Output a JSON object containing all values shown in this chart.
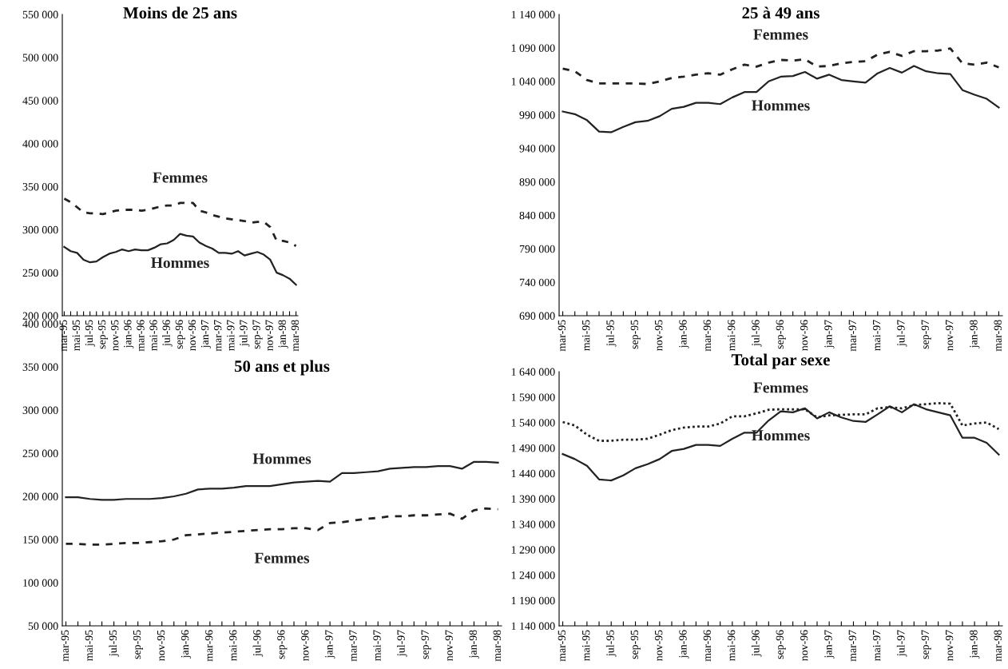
{
  "chart_data": [
    {
      "type": "line",
      "title": "Moins de 25 ans",
      "categories": [
        "mar-95",
        null,
        "mai-95",
        null,
        "jul-95",
        null,
        "sep-95",
        null,
        "nov-95",
        null,
        "jan-96",
        null,
        "mar-96",
        null,
        "mai-96",
        null,
        "jul-96",
        null,
        "sep-96",
        null,
        "nov-96",
        null,
        "jan-97",
        null,
        "mar-97",
        null,
        "mai-97",
        null,
        "jul-97",
        null,
        "sep-97",
        null,
        "nov-97",
        null,
        "jan-98",
        null,
        "mar-98"
      ],
      "ylim": [
        200000,
        550000
      ],
      "yticks": [
        {
          "value": 200000,
          "label": "200 000"
        },
        {
          "value": 250000,
          "label": "250 000"
        },
        {
          "value": 300000,
          "label": "300 000"
        },
        {
          "value": 350000,
          "label": "350 000"
        },
        {
          "value": 400000,
          "label": "400 000"
        },
        {
          "value": 450000,
          "label": "450 000"
        },
        {
          "value": 500000,
          "label": "500 000"
        },
        {
          "value": 550000,
          "label": "550 000"
        }
      ],
      "series": [
        {
          "name": "Femmes",
          "color": "#222222",
          "line_style": "dashed",
          "values": [
            336000,
            332000,
            326000,
            320000,
            319000,
            319000,
            318000,
            320000,
            322000,
            323000,
            323000,
            323000,
            322000,
            323000,
            325000,
            327000,
            328000,
            328000,
            331000,
            331000,
            331000,
            322000,
            320000,
            317000,
            315000,
            313000,
            312000,
            311000,
            310000,
            308000,
            309000,
            309000,
            303000,
            287000,
            287000,
            285000,
            281000
          ]
        },
        {
          "name": "Hommes",
          "color": "#222222",
          "line_style": "solid",
          "values": [
            280000,
            275000,
            273000,
            265000,
            262000,
            263000,
            268000,
            272000,
            274000,
            277000,
            275000,
            277000,
            276000,
            276000,
            279000,
            283000,
            284000,
            288000,
            295000,
            293000,
            292000,
            285000,
            281000,
            278000,
            273000,
            273000,
            272000,
            275000,
            270000,
            272000,
            274000,
            271000,
            265000,
            250000,
            247000,
            243000,
            236000
          ]
        }
      ],
      "grid": false,
      "legend": false,
      "marker": "none"
    },
    {
      "type": "line",
      "title": "25 à 49 ans",
      "categories": [
        "mar-95",
        null,
        "mai-95",
        null,
        "jul-95",
        null,
        "sep-95",
        null,
        "nov-95",
        null,
        "jan-96",
        null,
        "mar-96",
        null,
        "mai-96",
        null,
        "jul-96",
        null,
        "sep-96",
        null,
        "nov-96",
        null,
        "jan-97",
        null,
        "mar-97",
        null,
        "mai-97",
        null,
        "jul-97",
        null,
        "sep-97",
        null,
        "nov-97",
        null,
        "jan-98",
        null,
        "mar-98"
      ],
      "ylim": [
        690000,
        1140000
      ],
      "yticks": [
        {
          "value": 690000,
          "label": "690 000"
        },
        {
          "value": 740000,
          "label": "740 000"
        },
        {
          "value": 790000,
          "label": "790 000"
        },
        {
          "value": 840000,
          "label": "840 000"
        },
        {
          "value": 890000,
          "label": "890 000"
        },
        {
          "value": 940000,
          "label": "940 000"
        },
        {
          "value": 990000,
          "label": "990 000"
        },
        {
          "value": 1040000,
          "label": "1 040 000"
        },
        {
          "value": 1090000,
          "label": "1 090 000"
        },
        {
          "value": 1140000,
          "label": "1 140 000"
        }
      ],
      "series": [
        {
          "name": "Femmes",
          "color": "#222222",
          "line_style": "dashed",
          "values": [
            1059000,
            1055000,
            1042000,
            1037000,
            1037000,
            1037000,
            1037000,
            1036000,
            1040000,
            1045000,
            1047000,
            1050000,
            1052000,
            1050000,
            1058000,
            1065000,
            1062000,
            1068000,
            1072000,
            1071000,
            1073000,
            1062000,
            1063000,
            1067000,
            1069000,
            1070000,
            1080000,
            1084000,
            1078000,
            1085000,
            1085000,
            1086000,
            1089000,
            1067000,
            1065000,
            1068000,
            1061000
          ]
        },
        {
          "name": "Hommes",
          "color": "#222222",
          "line_style": "solid",
          "values": [
            995000,
            991000,
            982000,
            965000,
            964000,
            972000,
            979000,
            981000,
            988000,
            999000,
            1002000,
            1008000,
            1008000,
            1006000,
            1016000,
            1024000,
            1024000,
            1040000,
            1047000,
            1048000,
            1054000,
            1044000,
            1050000,
            1042000,
            1040000,
            1038000,
            1052000,
            1060000,
            1053000,
            1063000,
            1055000,
            1052000,
            1051000,
            1027000,
            1020000,
            1014000,
            1001000
          ]
        }
      ],
      "grid": false,
      "legend": false,
      "marker": "none"
    },
    {
      "type": "line",
      "title": "50 ans et plus",
      "categories": [
        "mar-95",
        null,
        "mai-95",
        null,
        "jul-95",
        null,
        "sep-95",
        null,
        "nov-95",
        null,
        "jan-96",
        null,
        "mar-96",
        null,
        "mai-96",
        null,
        "jul-96",
        null,
        "sep-96",
        null,
        "nov-96",
        null,
        "jan-97",
        null,
        "mar-97",
        null,
        "mai-97",
        null,
        "jul-97",
        null,
        "sep-97",
        null,
        "nov-97",
        null,
        "jan-98",
        null,
        "mar-98"
      ],
      "ylim": [
        50000,
        400000
      ],
      "yticks": [
        {
          "value": 50000,
          "label": "50 000"
        },
        {
          "value": 100000,
          "label": "100 000"
        },
        {
          "value": 150000,
          "label": "150 000"
        },
        {
          "value": 200000,
          "label": "200 000"
        },
        {
          "value": 250000,
          "label": "250 000"
        },
        {
          "value": 300000,
          "label": "300 000"
        },
        {
          "value": 350000,
          "label": "350 000"
        },
        {
          "value": 400000,
          "label": "400 000"
        }
      ],
      "series": [
        {
          "name": "Hommes",
          "color": "#222222",
          "line_style": "solid",
          "values": [
            199000,
            199000,
            197000,
            196000,
            196000,
            197000,
            197000,
            197000,
            198000,
            200000,
            203000,
            208000,
            209000,
            209000,
            210000,
            212000,
            212000,
            212000,
            214000,
            216000,
            217000,
            218000,
            217000,
            227000,
            227000,
            228000,
            229000,
            232000,
            233000,
            234000,
            234000,
            235000,
            235000,
            232000,
            240000,
            240000,
            239000
          ]
        },
        {
          "name": "Femmes",
          "color": "#222222",
          "line_style": "dashed",
          "values": [
            145000,
            145000,
            144000,
            144000,
            145000,
            146000,
            146000,
            147000,
            148000,
            150000,
            155000,
            156000,
            157000,
            158000,
            159000,
            160000,
            161000,
            162000,
            162000,
            163000,
            163000,
            161000,
            169000,
            170000,
            172000,
            174000,
            175000,
            177000,
            177000,
            178000,
            178000,
            179000,
            180000,
            174000,
            184000,
            186000,
            185000
          ]
        }
      ],
      "grid": false,
      "legend": false,
      "marker": "none"
    },
    {
      "type": "line",
      "title": "Total par sexe",
      "categories": [
        "mar-95",
        null,
        "mai-95",
        null,
        "jul-95",
        null,
        "sep-95",
        null,
        "nov-95",
        null,
        "jan-96",
        null,
        "mar-96",
        null,
        "mai-96",
        null,
        "jul-96",
        null,
        "sep-96",
        null,
        "nov-96",
        null,
        "jan-97",
        null,
        "mar-97",
        null,
        "mai-97",
        null,
        "jul-97",
        null,
        "sep-97",
        null,
        "nov-97",
        null,
        "jan-98",
        null,
        "mar-98"
      ],
      "ylim": [
        1140000,
        1640000
      ],
      "yticks": [
        {
          "value": 1140000,
          "label": "1 140 000"
        },
        {
          "value": 1190000,
          "label": "1 190 000"
        },
        {
          "value": 1240000,
          "label": "1 240 000"
        },
        {
          "value": 1290000,
          "label": "1 290 000"
        },
        {
          "value": 1340000,
          "label": "1 340 000"
        },
        {
          "value": 1390000,
          "label": "1 390 000"
        },
        {
          "value": 1440000,
          "label": "1 440 000"
        },
        {
          "value": 1490000,
          "label": "1 490 000"
        },
        {
          "value": 1540000,
          "label": "1 540 000"
        },
        {
          "value": 1590000,
          "label": "1 590 000"
        },
        {
          "value": 1640000,
          "label": "1 640 000"
        }
      ],
      "series": [
        {
          "name": "Femmes",
          "color": "#222222",
          "line_style": "dotted",
          "values": [
            1541000,
            1534000,
            1516000,
            1504000,
            1504000,
            1506000,
            1506000,
            1508000,
            1516000,
            1525000,
            1530000,
            1532000,
            1532000,
            1538000,
            1552000,
            1552000,
            1558000,
            1565000,
            1566000,
            1566000,
            1566000,
            1550000,
            1554000,
            1555000,
            1556000,
            1556000,
            1568000,
            1570000,
            1568000,
            1574000,
            1576000,
            1578000,
            1577000,
            1534000,
            1538000,
            1540000,
            1527000
          ]
        },
        {
          "name": "Hommes",
          "color": "#222222",
          "line_style": "solid",
          "values": [
            1478000,
            1468000,
            1455000,
            1428000,
            1426000,
            1436000,
            1450000,
            1458000,
            1468000,
            1484000,
            1488000,
            1496000,
            1496000,
            1494000,
            1508000,
            1520000,
            1520000,
            1544000,
            1562000,
            1560000,
            1568000,
            1548000,
            1560000,
            1550000,
            1543000,
            1541000,
            1556000,
            1572000,
            1560000,
            1576000,
            1566000,
            1560000,
            1554000,
            1510000,
            1510000,
            1500000,
            1477000
          ]
        }
      ],
      "grid": false,
      "legend": false,
      "marker": "none"
    }
  ]
}
